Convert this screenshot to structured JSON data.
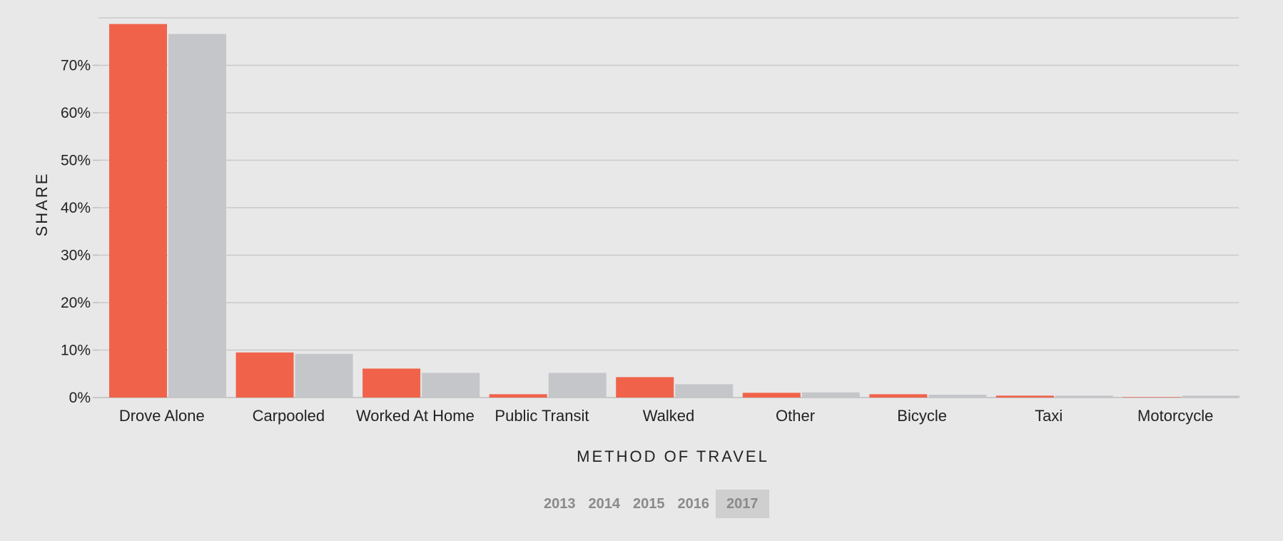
{
  "chart_data": {
    "type": "bar",
    "categories": [
      "Drove Alone",
      "Carpooled",
      "Worked At Home",
      "Public Transit",
      "Walked",
      "Other",
      "Bicycle",
      "Taxi",
      "Motorcycle"
    ],
    "series": [
      {
        "color": "#f0634a",
        "values": [
          78.7,
          9.5,
          6.1,
          0.7,
          4.3,
          1.0,
          0.7,
          0.4,
          0.1
        ]
      },
      {
        "color": "#c5c6ca",
        "values": [
          76.6,
          9.2,
          5.2,
          5.2,
          2.8,
          1.1,
          0.6,
          0.4,
          0.4
        ]
      }
    ],
    "xlabel": "METHOD OF TRAVEL",
    "ylabel": "SHARE",
    "ylim": [
      0,
      80
    ],
    "yticks": [
      0,
      10,
      20,
      30,
      40,
      50,
      60,
      70
    ],
    "ytick_labels": [
      "0%",
      "10%",
      "20%",
      "30%",
      "40%",
      "50%",
      "60%",
      "70%"
    ],
    "grid": true
  },
  "year_selector": {
    "years": [
      "2013",
      "2014",
      "2015",
      "2016",
      "2017"
    ],
    "selected": "2017"
  },
  "colors": {
    "background": "#e8e8e8",
    "gridline": "#c9c9c9",
    "axis": "#bdbdbd"
  }
}
